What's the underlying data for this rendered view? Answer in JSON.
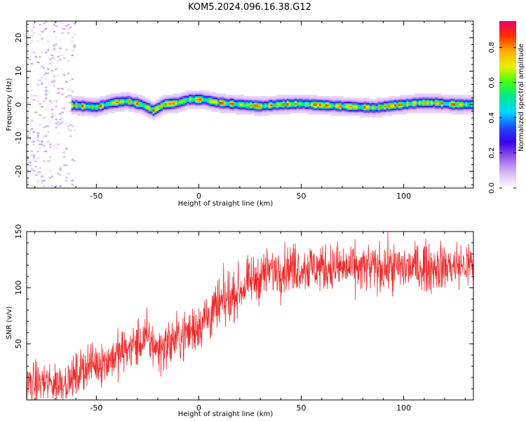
{
  "title": "KOM5.2024.096.16.38.G12",
  "colors": {
    "snr_line": "#ee2a2a",
    "colormap": [
      "#ffffff",
      "#d8b8f5",
      "#9a5cf0",
      "#3a00e8",
      "#1a4dff",
      "#00d8ff",
      "#00e890",
      "#40ff10",
      "#e8f000",
      "#ffb000",
      "#ff3000",
      "#e8006a"
    ]
  },
  "chart_data": [
    {
      "type": "heatmap",
      "name": "spectrogram",
      "xlabel": "Height of straight line (km)",
      "ylabel": "Frequency (Hz)",
      "xlim": [
        -84,
        134
      ],
      "ylim": [
        -25,
        25
      ],
      "xticks": [
        -50,
        0,
        50,
        100
      ],
      "yticks": [
        -20,
        -10,
        0,
        10,
        20
      ],
      "colorbar": {
        "label": "Normalized spectral amplitude",
        "range": [
          0,
          0.95
        ],
        "ticks": [
          0.0,
          0.2,
          0.4,
          0.6,
          0.8
        ]
      },
      "ridge_center_hz": [
        {
          "x": -60,
          "y": -0.3
        },
        {
          "x": -50,
          "y": -0.8
        },
        {
          "x": -42,
          "y": 0.5
        },
        {
          "x": -35,
          "y": 1.0
        },
        {
          "x": -28,
          "y": 0.0
        },
        {
          "x": -22,
          "y": -1.8
        },
        {
          "x": -17,
          "y": 0.0
        },
        {
          "x": -10,
          "y": 0.5
        },
        {
          "x": -5,
          "y": 1.5
        },
        {
          "x": 2,
          "y": 1.5
        },
        {
          "x": 10,
          "y": 0.5
        },
        {
          "x": 20,
          "y": 0.0
        },
        {
          "x": 30,
          "y": -0.5
        },
        {
          "x": 40,
          "y": 0.0
        },
        {
          "x": 50,
          "y": 0.2
        },
        {
          "x": 60,
          "y": -0.2
        },
        {
          "x": 70,
          "y": -0.5
        },
        {
          "x": 80,
          "y": -0.8
        },
        {
          "x": 86,
          "y": -1.0
        },
        {
          "x": 92,
          "y": -0.5
        },
        {
          "x": 100,
          "y": 0.0
        },
        {
          "x": 108,
          "y": 0.5
        },
        {
          "x": 115,
          "y": 0.5
        },
        {
          "x": 125,
          "y": 0.0
        },
        {
          "x": 134,
          "y": 0.0
        }
      ],
      "ridge_peak_amplitude": 0.9,
      "noise_region_x": [
        -84,
        -60
      ]
    },
    {
      "type": "line",
      "name": "snr",
      "xlabel": "Height of straight line (km)",
      "ylabel": "SNR (v/v)",
      "xlim": [
        -84,
        134
      ],
      "ylim": [
        0,
        150
      ],
      "xticks": [
        -50,
        0,
        50,
        100
      ],
      "yticks": [
        50,
        100,
        150
      ],
      "series": [
        {
          "trend": [
            {
              "x": -84,
              "y": 15
            },
            {
              "x": -70,
              "y": 15
            },
            {
              "x": -62,
              "y": 18
            },
            {
              "x": -55,
              "y": 30
            },
            {
              "x": -45,
              "y": 35
            },
            {
              "x": -35,
              "y": 45
            },
            {
              "x": -25,
              "y": 55
            },
            {
              "x": -20,
              "y": 45
            },
            {
              "x": -15,
              "y": 50
            },
            {
              "x": -5,
              "y": 60
            },
            {
              "x": 5,
              "y": 75
            },
            {
              "x": 15,
              "y": 90
            },
            {
              "x": 25,
              "y": 105
            },
            {
              "x": 35,
              "y": 115
            },
            {
              "x": 45,
              "y": 118
            },
            {
              "x": 60,
              "y": 118
            },
            {
              "x": 80,
              "y": 117
            },
            {
              "x": 100,
              "y": 118
            },
            {
              "x": 120,
              "y": 119
            },
            {
              "x": 134,
              "y": 120
            }
          ],
          "noise_amplitude": 12
        }
      ]
    }
  ]
}
